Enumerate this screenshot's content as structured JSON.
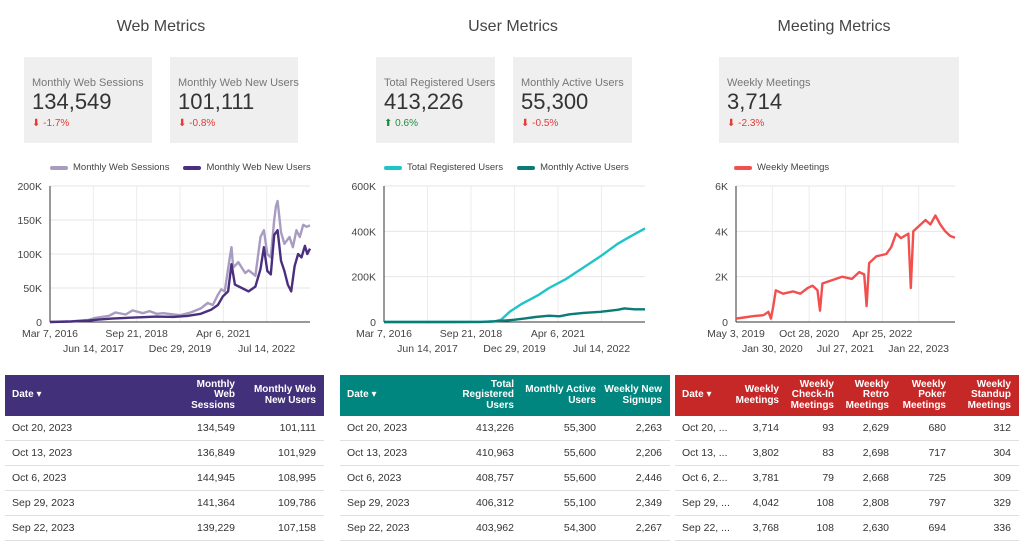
{
  "sections": {
    "web": "Web Metrics",
    "user": "User Metrics",
    "meeting": "Meeting Metrics"
  },
  "scorecards": [
    {
      "label": "Monthly Web Sessions",
      "value": "134,549",
      "delta": "-1.7%",
      "direction": "down"
    },
    {
      "label": "Monthly Web New Users",
      "value": "101,111",
      "delta": "-0.8%",
      "direction": "down"
    },
    {
      "label": "Total Registered Users",
      "value": "413,226",
      "delta": "0.6%",
      "direction": "up"
    },
    {
      "label": "Monthly Active Users",
      "value": "55,300",
      "delta": "-0.5%",
      "direction": "down"
    },
    {
      "label": "Weekly Meetings",
      "value": "3,714",
      "delta": "-2.3%",
      "direction": "down"
    }
  ],
  "delta_arrows": {
    "down": "⬇",
    "up": "⬆"
  },
  "chart_data": [
    {
      "type": "line",
      "legend": [
        "Monthly Web Sessions",
        "Monthly Web New Users"
      ],
      "colors": [
        "#a89cc1",
        "#4a2f7f"
      ],
      "x_domain": [
        2016.18,
        2023.8
      ],
      "ylim": [
        0,
        200000
      ],
      "y_ticks": [
        {
          "v": 0,
          "l": "0"
        },
        {
          "v": 50000,
          "l": "50K"
        },
        {
          "v": 100000,
          "l": "100K"
        },
        {
          "v": 150000,
          "l": "150K"
        },
        {
          "v": 200000,
          "l": "200K"
        }
      ],
      "x_ticks_top": [
        {
          "v": 2016.18,
          "l": "Mar 7, 2016"
        },
        {
          "v": 2018.72,
          "l": "Sep 21, 2018"
        },
        {
          "v": 2021.26,
          "l": "Apr 6, 2021"
        }
      ],
      "x_ticks_bottom": [
        {
          "v": 2017.45,
          "l": "Jun 14, 2017"
        },
        {
          "v": 2019.99,
          "l": "Dec 29, 2019"
        },
        {
          "v": 2022.53,
          "l": "Jul 14, 2022"
        }
      ],
      "series": [
        {
          "name": "Monthly Web Sessions",
          "points": [
            [
              2016.18,
              0
            ],
            [
              2016.8,
              1000
            ],
            [
              2017.3,
              3000
            ],
            [
              2017.5,
              6000
            ],
            [
              2017.9,
              9000
            ],
            [
              2018.1,
              14000
            ],
            [
              2018.4,
              11000
            ],
            [
              2018.6,
              17000
            ],
            [
              2018.9,
              13000
            ],
            [
              2019.1,
              16000
            ],
            [
              2019.3,
              12000
            ],
            [
              2019.5,
              13000
            ],
            [
              2019.8,
              11000
            ],
            [
              2020.0,
              10000
            ],
            [
              2020.3,
              14000
            ],
            [
              2020.6,
              20000
            ],
            [
              2020.8,
              28000
            ],
            [
              2020.95,
              25000
            ],
            [
              2021.1,
              40000
            ],
            [
              2021.2,
              48000
            ],
            [
              2021.3,
              45000
            ],
            [
              2021.45,
              95000
            ],
            [
              2021.5,
              110000
            ],
            [
              2021.55,
              80000
            ],
            [
              2021.7,
              88000
            ],
            [
              2021.9,
              72000
            ],
            [
              2022.0,
              76000
            ],
            [
              2022.2,
              68000
            ],
            [
              2022.35,
              125000
            ],
            [
              2022.45,
              135000
            ],
            [
              2022.55,
              100000
            ],
            [
              2022.65,
              95000
            ],
            [
              2022.75,
              150000
            ],
            [
              2022.8,
              170000
            ],
            [
              2022.85,
              178000
            ],
            [
              2022.95,
              132000
            ],
            [
              2023.05,
              115000
            ],
            [
              2023.2,
              125000
            ],
            [
              2023.3,
              110000
            ],
            [
              2023.4,
              135000
            ],
            [
              2023.5,
              125000
            ],
            [
              2023.6,
              143000
            ],
            [
              2023.7,
              140000
            ],
            [
              2023.8,
              142000
            ]
          ]
        },
        {
          "name": "Monthly Web New Users",
          "points": [
            [
              2016.18,
              0
            ],
            [
              2016.8,
              800
            ],
            [
              2017.3,
              2000
            ],
            [
              2017.6,
              3500
            ],
            [
              2018.0,
              5000
            ],
            [
              2018.4,
              6000
            ],
            [
              2018.9,
              7000
            ],
            [
              2019.3,
              8000
            ],
            [
              2019.8,
              7500
            ],
            [
              2020.2,
              9000
            ],
            [
              2020.6,
              12000
            ],
            [
              2020.9,
              18000
            ],
            [
              2021.1,
              25000
            ],
            [
              2021.25,
              38000
            ],
            [
              2021.4,
              45000
            ],
            [
              2021.5,
              85000
            ],
            [
              2021.6,
              55000
            ],
            [
              2021.8,
              50000
            ],
            [
              2022.0,
              45000
            ],
            [
              2022.2,
              52000
            ],
            [
              2022.35,
              78000
            ],
            [
              2022.45,
              110000
            ],
            [
              2022.55,
              75000
            ],
            [
              2022.65,
              70000
            ],
            [
              2022.75,
              128000
            ],
            [
              2022.85,
              135000
            ],
            [
              2022.95,
              90000
            ],
            [
              2023.05,
              75000
            ],
            [
              2023.15,
              55000
            ],
            [
              2023.25,
              45000
            ],
            [
              2023.35,
              82000
            ],
            [
              2023.45,
              100000
            ],
            [
              2023.55,
              95000
            ],
            [
              2023.65,
              112000
            ],
            [
              2023.72,
              100000
            ],
            [
              2023.8,
              108000
            ]
          ]
        }
      ]
    },
    {
      "type": "line",
      "legend": [
        "Total Registered Users",
        "Monthly Active Users"
      ],
      "colors": [
        "#1ec4c6",
        "#0b7b77"
      ],
      "x_domain": [
        2016.18,
        2023.8
      ],
      "ylim": [
        0,
        600000
      ],
      "y_ticks": [
        {
          "v": 0,
          "l": "0"
        },
        {
          "v": 200000,
          "l": "200K"
        },
        {
          "v": 400000,
          "l": "400K"
        },
        {
          "v": 600000,
          "l": "600K"
        }
      ],
      "x_ticks_top": [
        {
          "v": 2016.18,
          "l": "Mar 7, 2016"
        },
        {
          "v": 2018.72,
          "l": "Sep 21, 2018"
        },
        {
          "v": 2021.26,
          "l": "Apr 6, 2021"
        }
      ],
      "x_ticks_bottom": [
        {
          "v": 2017.45,
          "l": "Jun 14, 2017"
        },
        {
          "v": 2019.99,
          "l": "Dec 29, 2019"
        },
        {
          "v": 2022.53,
          "l": "Jul 14, 2022"
        }
      ],
      "series": [
        {
          "name": "Total Registered Users",
          "points": [
            [
              2016.18,
              0
            ],
            [
              2018.0,
              0
            ],
            [
              2019.0,
              500
            ],
            [
              2019.4,
              2000
            ],
            [
              2019.6,
              10000
            ],
            [
              2019.85,
              45000
            ],
            [
              2020.2,
              80000
            ],
            [
              2020.7,
              120000
            ],
            [
              2021.0,
              150000
            ],
            [
              2021.5,
              190000
            ],
            [
              2022.0,
              240000
            ],
            [
              2022.5,
              290000
            ],
            [
              2023.0,
              345000
            ],
            [
              2023.4,
              380000
            ],
            [
              2023.8,
              413000
            ]
          ]
        },
        {
          "name": "Monthly Active Users",
          "points": [
            [
              2016.18,
              0
            ],
            [
              2018.0,
              0
            ],
            [
              2019.0,
              500
            ],
            [
              2019.4,
              3000
            ],
            [
              2019.7,
              6000
            ],
            [
              2020.0,
              10000
            ],
            [
              2020.3,
              16000
            ],
            [
              2020.6,
              22000
            ],
            [
              2021.0,
              28000
            ],
            [
              2021.3,
              25000
            ],
            [
              2021.6,
              34000
            ],
            [
              2022.0,
              40000
            ],
            [
              2022.5,
              45000
            ],
            [
              2023.0,
              54000
            ],
            [
              2023.2,
              60000
            ],
            [
              2023.5,
              56000
            ],
            [
              2023.8,
              56000
            ]
          ]
        }
      ]
    },
    {
      "type": "line",
      "legend": [
        "Weekly Meetings"
      ],
      "colors": [
        "#f24f4f"
      ],
      "x_domain": [
        2019.34,
        2023.8
      ],
      "ylim": [
        0,
        6000
      ],
      "y_ticks": [
        {
          "v": 0,
          "l": "0"
        },
        {
          "v": 2000,
          "l": "2K"
        },
        {
          "v": 4000,
          "l": "4K"
        },
        {
          "v": 6000,
          "l": "6K"
        }
      ],
      "x_ticks_top": [
        {
          "v": 2019.34,
          "l": "May 3, 2019"
        },
        {
          "v": 2020.83,
          "l": "Oct 28, 2020"
        },
        {
          "v": 2022.32,
          "l": "Apr 25, 2022"
        }
      ],
      "x_ticks_bottom": [
        {
          "v": 2020.08,
          "l": "Jan 30, 2020"
        },
        {
          "v": 2021.57,
          "l": "Jul 27, 2021"
        },
        {
          "v": 2023.06,
          "l": "Jan 22, 2023"
        }
      ],
      "series": [
        {
          "name": "Weekly Meetings",
          "points": [
            [
              2019.34,
              150
            ],
            [
              2019.5,
              200
            ],
            [
              2019.7,
              260
            ],
            [
              2019.9,
              300
            ],
            [
              2020.0,
              450
            ],
            [
              2020.05,
              150
            ],
            [
              2020.1,
              700
            ],
            [
              2020.15,
              1400
            ],
            [
              2020.3,
              1250
            ],
            [
              2020.5,
              1350
            ],
            [
              2020.65,
              1250
            ],
            [
              2020.8,
              1500
            ],
            [
              2020.9,
              1600
            ],
            [
              2021.0,
              1400
            ],
            [
              2021.05,
              500
            ],
            [
              2021.1,
              1700
            ],
            [
              2021.3,
              1850
            ],
            [
              2021.5,
              2000
            ],
            [
              2021.7,
              1900
            ],
            [
              2021.85,
              2200
            ],
            [
              2021.95,
              2100
            ],
            [
              2022.0,
              700
            ],
            [
              2022.05,
              2600
            ],
            [
              2022.2,
              2900
            ],
            [
              2022.4,
              3000
            ],
            [
              2022.5,
              3300
            ],
            [
              2022.6,
              3900
            ],
            [
              2022.7,
              3700
            ],
            [
              2022.85,
              3900
            ],
            [
              2022.9,
              1500
            ],
            [
              2022.95,
              4000
            ],
            [
              2023.05,
              4200
            ],
            [
              2023.2,
              4500
            ],
            [
              2023.3,
              4300
            ],
            [
              2023.4,
              4700
            ],
            [
              2023.5,
              4300
            ],
            [
              2023.6,
              4000
            ],
            [
              2023.7,
              3800
            ],
            [
              2023.8,
              3714
            ]
          ]
        }
      ]
    }
  ],
  "tables": [
    {
      "columns": [
        "Date ▾",
        "Monthly Web Sessions",
        "Monthly Web New Users"
      ],
      "rows": [
        [
          "Oct 20, 2023",
          "134,549",
          "101,111"
        ],
        [
          "Oct 13, 2023",
          "136,849",
          "101,929"
        ],
        [
          "Oct 6, 2023",
          "144,945",
          "108,995"
        ],
        [
          "Sep 29, 2023",
          "141,364",
          "109,786"
        ],
        [
          "Sep 22, 2023",
          "139,229",
          "107,158"
        ]
      ]
    },
    {
      "columns": [
        "Date ▾",
        "Total Registered Users",
        "Monthly Active Users",
        "Weekly New Signups"
      ],
      "rows": [
        [
          "Oct 20, 2023",
          "413,226",
          "55,300",
          "2,263"
        ],
        [
          "Oct 13, 2023",
          "410,963",
          "55,600",
          "2,206"
        ],
        [
          "Oct 6, 2023",
          "408,757",
          "55,600",
          "2,446"
        ],
        [
          "Sep 29, 2023",
          "406,312",
          "55,100",
          "2,349"
        ],
        [
          "Sep 22, 2023",
          "403,962",
          "54,300",
          "2,267"
        ]
      ]
    },
    {
      "columns": [
        "Date ▾",
        "Weekly Meetings",
        "Weekly Check-In Meetings",
        "Weekly Retro Meetings",
        "Weekly Poker Meetings",
        "Weekly Standup Meetings"
      ],
      "rows": [
        [
          "Oct 20, ...",
          "3,714",
          "93",
          "2,629",
          "680",
          "312"
        ],
        [
          "Oct 13, ...",
          "3,802",
          "83",
          "2,698",
          "717",
          "304"
        ],
        [
          "Oct 6, 2...",
          "3,781",
          "79",
          "2,668",
          "725",
          "309"
        ],
        [
          "Sep 29, ...",
          "4,042",
          "108",
          "2,808",
          "797",
          "329"
        ],
        [
          "Sep 22, ...",
          "3,768",
          "108",
          "2,630",
          "694",
          "336"
        ]
      ]
    }
  ],
  "colors": {
    "web_header": "#42307a",
    "user_header": "#00857f",
    "meeting_header": "#c62828"
  }
}
